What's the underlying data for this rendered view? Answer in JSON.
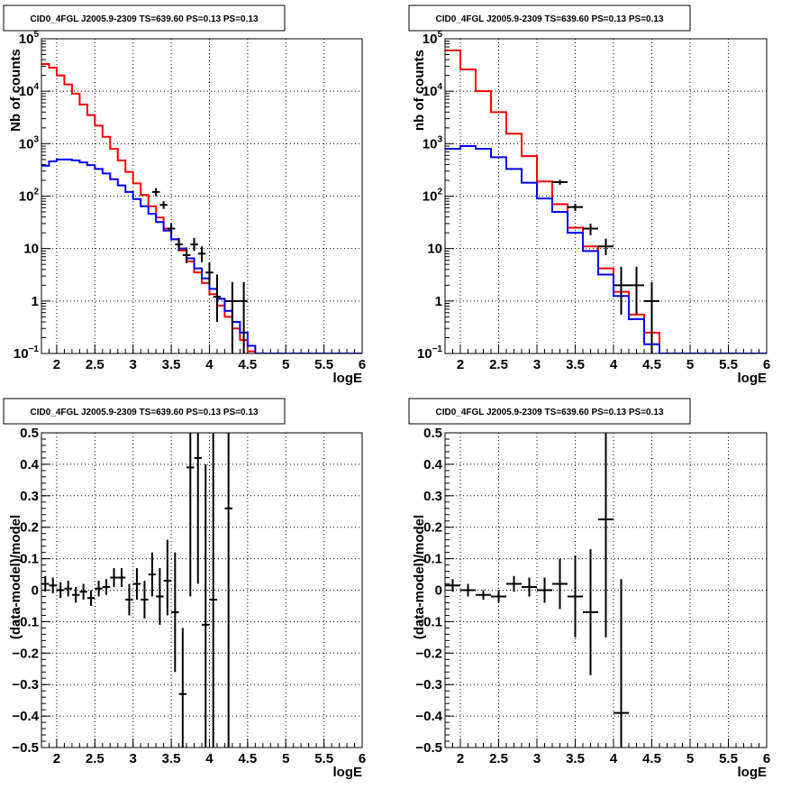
{
  "chart_data": [
    {
      "type": "line",
      "title": "CID0_4FGL J2005.9-2309 TS=639.60 PS=0.13 PS=0.13",
      "xlabel": "logE",
      "ylabel": "Nb of counts",
      "xlim": [
        1.8,
        6.0
      ],
      "ylim": [
        0.1,
        100000
      ],
      "yscale": "log",
      "grid": true,
      "x_ticks": [
        "2",
        "2.5",
        "3",
        "3.5",
        "4",
        "4.5",
        "5",
        "5.5",
        "6"
      ],
      "y_ticks": [
        {
          "v": 0.1,
          "base": "10",
          "exp": "−1"
        },
        {
          "v": 1,
          "base": "1",
          "exp": ""
        },
        {
          "v": 10,
          "base": "10",
          "exp": ""
        },
        {
          "v": 100,
          "base": "10",
          "exp": "2"
        },
        {
          "v": 1000,
          "base": "10",
          "exp": "3"
        },
        {
          "v": 10000,
          "base": "10",
          "exp": "4"
        },
        {
          "v": 100000,
          "base": "10",
          "exp": "5"
        }
      ],
      "bin_edges": [
        1.8,
        1.9,
        2.0,
        2.1,
        2.2,
        2.3,
        2.4,
        2.5,
        2.6,
        2.7,
        2.8,
        2.9,
        3.0,
        3.1,
        3.2,
        3.3,
        3.4,
        3.5,
        3.6,
        3.7,
        3.8,
        3.9,
        4.0,
        4.1,
        4.2,
        4.3,
        4.4,
        4.5,
        4.6,
        4.7,
        4.8,
        4.9,
        5.0,
        5.1,
        5.2,
        5.3,
        5.4,
        5.5,
        5.6,
        5.7,
        5.8,
        5.9,
        6.0
      ],
      "series": [
        {
          "color": "#ff0000",
          "style": "step",
          "values": [
            33000,
            28000,
            20000,
            13500,
            9000,
            5600,
            3500,
            2200,
            1350,
            800,
            480,
            290,
            175,
            105,
            64,
            39,
            24,
            15,
            9.2,
            5.7,
            3.5,
            2.2,
            1.35,
            0.82,
            0.5,
            0.3,
            0.18,
            0.11,
            0.1,
            0.1,
            0.1,
            0.1,
            0.1,
            0.1,
            0.1,
            0.1,
            0.1,
            0.1,
            0.1,
            0.1,
            0.1,
            0.1
          ]
        },
        {
          "color": "#0000ff",
          "style": "step",
          "values": [
            380,
            460,
            500,
            500,
            480,
            440,
            390,
            330,
            270,
            210,
            160,
            120,
            88,
            64,
            46,
            32,
            22,
            15,
            10,
            6.5,
            4.2,
            2.7,
            1.7,
            1.1,
            0.65,
            0.4,
            0.25,
            0.14,
            0.1,
            0.1,
            0.1,
            0.1,
            0.1,
            0.1,
            0.1,
            0.1,
            0.1,
            0.1,
            0.1,
            0.1,
            0.1,
            0.1
          ]
        },
        {
          "color": "#000000",
          "style": "points",
          "points": [
            {
              "x": 3.3,
              "xerr": 0.05,
              "y": 120,
              "lo": 100,
              "hi": 142
            },
            {
              "x": 3.4,
              "xerr": 0.05,
              "y": 68,
              "lo": 57,
              "hi": 80
            },
            {
              "x": 3.5,
              "xerr": 0.05,
              "y": 24,
              "lo": 19,
              "hi": 30
            },
            {
              "x": 3.6,
              "xerr": 0.05,
              "y": 12,
              "lo": 9,
              "hi": 16
            },
            {
              "x": 3.7,
              "xerr": 0.05,
              "y": 7.5,
              "lo": 5.3,
              "hi": 10.5
            },
            {
              "x": 3.8,
              "xerr": 0.05,
              "y": 12,
              "lo": 9,
              "hi": 16
            },
            {
              "x": 3.9,
              "xerr": 0.05,
              "y": 8,
              "lo": 5.5,
              "hi": 11
            },
            {
              "x": 4.0,
              "xerr": 0.05,
              "y": 3.5,
              "lo": 2.0,
              "hi": 5.5
            },
            {
              "x": 4.1,
              "xerr": 0.05,
              "y": 1.2,
              "lo": 0.4,
              "hi": 3.2
            },
            {
              "x": 4.3,
              "xerr": 0.1,
              "y": 1.0,
              "lo": 0.1,
              "hi": 2.3
            },
            {
              "x": 4.45,
              "xerr": 0.05,
              "y": 1.0,
              "lo": 0.1,
              "hi": 2.3
            }
          ]
        }
      ]
    },
    {
      "type": "line",
      "title": "CID0_4FGL J2005.9-2309 TS=639.60 PS=0.13 PS=0.13",
      "xlabel": "logE",
      "ylabel": "nb of counts",
      "xlim": [
        1.8,
        6.0
      ],
      "ylim": [
        0.1,
        100000
      ],
      "yscale": "log",
      "grid": true,
      "x_ticks": [
        "2",
        "2.5",
        "3",
        "3.5",
        "4",
        "4.5",
        "5",
        "5.5",
        "6"
      ],
      "y_ticks": [
        {
          "v": 0.1,
          "base": "10",
          "exp": "−1"
        },
        {
          "v": 1,
          "base": "1",
          "exp": ""
        },
        {
          "v": 10,
          "base": "10",
          "exp": ""
        },
        {
          "v": 100,
          "base": "10",
          "exp": "2"
        },
        {
          "v": 1000,
          "base": "10",
          "exp": "3"
        },
        {
          "v": 10000,
          "base": "10",
          "exp": "4"
        },
        {
          "v": 100000,
          "base": "10",
          "exp": "5"
        }
      ],
      "bin_edges": [
        1.8,
        2.0,
        2.2,
        2.4,
        2.6,
        2.8,
        3.0,
        3.2,
        3.4,
        3.6,
        3.8,
        4.0,
        4.2,
        4.4,
        4.6,
        4.8,
        5.0,
        5.2,
        5.4,
        5.6,
        5.8,
        6.0
      ],
      "series": [
        {
          "color": "#ff0000",
          "style": "step",
          "values": [
            60000,
            26000,
            10000,
            4000,
            1550,
            580,
            190,
            70,
            25,
            11,
            4.2,
            1.5,
            0.55,
            0.25,
            0.1,
            0.1,
            0.1,
            0.1,
            0.1,
            0.1,
            0.1
          ]
        },
        {
          "color": "#0000ff",
          "style": "step",
          "values": [
            800,
            900,
            800,
            550,
            330,
            180,
            90,
            50,
            20,
            9,
            3.2,
            1.25,
            0.45,
            0.15,
            0.1,
            0.1,
            0.1,
            0.1,
            0.1,
            0.1,
            0.1
          ]
        },
        {
          "color": "#000000",
          "style": "points",
          "points": [
            {
              "x": 3.3,
              "xerr": 0.1,
              "y": 185,
              "lo": 165,
              "hi": 205
            },
            {
              "x": 3.5,
              "xerr": 0.1,
              "y": 62,
              "lo": 52,
              "hi": 72
            },
            {
              "x": 3.7,
              "xerr": 0.1,
              "y": 24,
              "lo": 18,
              "hi": 30
            },
            {
              "x": 3.9,
              "xerr": 0.1,
              "y": 11,
              "lo": 7.5,
              "hi": 15.5
            },
            {
              "x": 4.1,
              "xerr": 0.1,
              "y": 2.0,
              "lo": 0.55,
              "hi": 4.5
            },
            {
              "x": 4.3,
              "xerr": 0.1,
              "y": 2.0,
              "lo": 0.55,
              "hi": 4.5
            },
            {
              "x": 4.5,
              "xerr": 0.1,
              "y": 1.0,
              "lo": 0.1,
              "hi": 2.3
            }
          ]
        }
      ]
    },
    {
      "type": "scatter",
      "title": "CID0_4FGL J2005.9-2309 TS=639.60 PS=0.13 PS=0.13",
      "xlabel": "logE",
      "ylabel": "(data-model)/model",
      "xlim": [
        1.8,
        6.0
      ],
      "ylim": [
        -0.5,
        0.5
      ],
      "yscale": "linear",
      "grid": true,
      "x_ticks": [
        "2",
        "2.5",
        "3",
        "3.5",
        "4",
        "4.5",
        "5",
        "5.5",
        "6"
      ],
      "y_ticks": [
        {
          "v": -0.5,
          "label": "−0.5"
        },
        {
          "v": -0.4,
          "label": "−0.4"
        },
        {
          "v": -0.3,
          "label": "−0.3"
        },
        {
          "v": -0.2,
          "label": "−0.2"
        },
        {
          "v": -0.1,
          "label": "−0.1"
        },
        {
          "v": 0,
          "label": "0"
        },
        {
          "v": 0.1,
          "label": "0.1"
        },
        {
          "v": 0.2,
          "label": "0.2"
        },
        {
          "v": 0.3,
          "label": "0.3"
        },
        {
          "v": 0.4,
          "label": "0.4"
        },
        {
          "v": 0.5,
          "label": "0.5"
        }
      ],
      "series": [
        {
          "color": "#000000",
          "style": "points",
          "points": [
            {
              "x": 1.85,
              "xerr": 0.05,
              "y": 0.02,
              "lo": -0.005,
              "hi": 0.045
            },
            {
              "x": 1.95,
              "xerr": 0.05,
              "y": 0.015,
              "lo": -0.01,
              "hi": 0.04
            },
            {
              "x": 2.05,
              "xerr": 0.05,
              "y": 0.0,
              "lo": -0.025,
              "hi": 0.025
            },
            {
              "x": 2.15,
              "xerr": 0.05,
              "y": 0.005,
              "lo": -0.02,
              "hi": 0.03
            },
            {
              "x": 2.25,
              "xerr": 0.05,
              "y": -0.015,
              "lo": -0.04,
              "hi": 0.01
            },
            {
              "x": 2.35,
              "xerr": 0.05,
              "y": -0.005,
              "lo": -0.03,
              "hi": 0.02
            },
            {
              "x": 2.45,
              "xerr": 0.05,
              "y": -0.025,
              "lo": -0.05,
              "hi": 0.0
            },
            {
              "x": 2.55,
              "xerr": 0.05,
              "y": 0.005,
              "lo": -0.02,
              "hi": 0.03
            },
            {
              "x": 2.65,
              "xerr": 0.05,
              "y": 0.01,
              "lo": -0.015,
              "hi": 0.035
            },
            {
              "x": 2.75,
              "xerr": 0.05,
              "y": 0.04,
              "lo": 0.01,
              "hi": 0.07
            },
            {
              "x": 2.85,
              "xerr": 0.05,
              "y": 0.04,
              "lo": 0.01,
              "hi": 0.07
            },
            {
              "x": 2.95,
              "xerr": 0.05,
              "y": -0.03,
              "lo": -0.08,
              "hi": 0.02
            },
            {
              "x": 3.05,
              "xerr": 0.05,
              "y": 0.02,
              "lo": -0.03,
              "hi": 0.07
            },
            {
              "x": 3.15,
              "xerr": 0.05,
              "y": -0.03,
              "lo": -0.09,
              "hi": 0.03
            },
            {
              "x": 3.25,
              "xerr": 0.05,
              "y": 0.05,
              "lo": -0.02,
              "hi": 0.12
            },
            {
              "x": 3.35,
              "xerr": 0.05,
              "y": -0.02,
              "lo": -0.11,
              "hi": 0.07
            },
            {
              "x": 3.45,
              "xerr": 0.05,
              "y": 0.03,
              "lo": -0.08,
              "hi": 0.16
            },
            {
              "x": 3.55,
              "xerr": 0.05,
              "y": -0.07,
              "lo": -0.26,
              "hi": 0.12
            },
            {
              "x": 3.65,
              "xerr": 0.05,
              "y": -0.33,
              "lo": -0.5,
              "hi": -0.12
            },
            {
              "x": 3.75,
              "xerr": 0.05,
              "y": 0.39,
              "lo": -0.02,
              "hi": 0.5
            },
            {
              "x": 3.85,
              "xerr": 0.05,
              "y": 0.42,
              "lo": 0.02,
              "hi": 0.5
            },
            {
              "x": 3.95,
              "xerr": 0.05,
              "y": -0.11,
              "lo": -0.5,
              "hi": 0.4
            },
            {
              "x": 4.05,
              "xerr": 0.05,
              "y": -0.03,
              "lo": -0.5,
              "hi": 0.5
            },
            {
              "x": 4.25,
              "xerr": 0.05,
              "y": 0.26,
              "lo": -0.5,
              "hi": 0.5
            }
          ]
        }
      ]
    },
    {
      "type": "scatter",
      "title": "CID0_4FGL J2005.9-2309 TS=639.60 PS=0.13 PS=0.13",
      "xlabel": "logE",
      "ylabel": "(data-model)/model",
      "xlim": [
        1.8,
        6.0
      ],
      "ylim": [
        -0.5,
        0.5
      ],
      "yscale": "linear",
      "grid": true,
      "x_ticks": [
        "2",
        "2.5",
        "3",
        "3.5",
        "4",
        "4.5",
        "5",
        "5.5",
        "6"
      ],
      "y_ticks": [
        {
          "v": -0.5,
          "label": "−0.5"
        },
        {
          "v": -0.4,
          "label": "−0.4"
        },
        {
          "v": -0.3,
          "label": "−0.3"
        },
        {
          "v": -0.2,
          "label": "−0.2"
        },
        {
          "v": -0.1,
          "label": "−0.1"
        },
        {
          "v": 0,
          "label": "0"
        },
        {
          "v": 0.1,
          "label": "0.1"
        },
        {
          "v": 0.2,
          "label": "0.2"
        },
        {
          "v": 0.3,
          "label": "0.3"
        },
        {
          "v": 0.4,
          "label": "0.4"
        },
        {
          "v": 0.5,
          "label": "0.5"
        }
      ],
      "series": [
        {
          "color": "#000000",
          "style": "points",
          "points": [
            {
              "x": 1.9,
              "xerr": 0.1,
              "y": 0.015,
              "lo": -0.005,
              "hi": 0.035
            },
            {
              "x": 2.1,
              "xerr": 0.1,
              "y": 0.0,
              "lo": -0.02,
              "hi": 0.02
            },
            {
              "x": 2.3,
              "xerr": 0.1,
              "y": -0.015,
              "lo": -0.03,
              "hi": 0.0
            },
            {
              "x": 2.5,
              "xerr": 0.1,
              "y": -0.02,
              "lo": -0.04,
              "hi": 0.0
            },
            {
              "x": 2.7,
              "xerr": 0.1,
              "y": 0.02,
              "lo": -0.005,
              "hi": 0.045
            },
            {
              "x": 2.9,
              "xerr": 0.1,
              "y": 0.01,
              "lo": -0.02,
              "hi": 0.04
            },
            {
              "x": 3.1,
              "xerr": 0.1,
              "y": 0.0,
              "lo": -0.04,
              "hi": 0.04
            },
            {
              "x": 3.3,
              "xerr": 0.1,
              "y": 0.02,
              "lo": -0.06,
              "hi": 0.1
            },
            {
              "x": 3.5,
              "xerr": 0.1,
              "y": -0.02,
              "lo": -0.15,
              "hi": 0.11
            },
            {
              "x": 3.7,
              "xerr": 0.1,
              "y": -0.07,
              "lo": -0.27,
              "hi": 0.13
            },
            {
              "x": 3.9,
              "xerr": 0.1,
              "y": 0.225,
              "lo": -0.15,
              "hi": 0.5
            },
            {
              "x": 4.1,
              "xerr": 0.1,
              "y": -0.39,
              "lo": -0.5,
              "hi": 0.035
            }
          ]
        }
      ]
    }
  ]
}
